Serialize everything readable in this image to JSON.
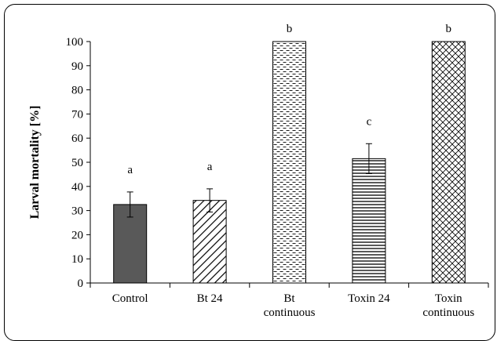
{
  "chart_data": {
    "type": "bar",
    "categories": [
      [
        "Control"
      ],
      [
        "Bt 24"
      ],
      [
        "Bt",
        "continuous"
      ],
      [
        "Toxin 24"
      ],
      [
        "Toxin",
        "continuous"
      ]
    ],
    "values": [
      32.5,
      34.2,
      100,
      51.5,
      100
    ],
    "errors": [
      5.2,
      4.8,
      0,
      6.2,
      0
    ],
    "letters": [
      "a",
      "a",
      "b",
      "c",
      "b"
    ],
    "fills": [
      "solid",
      "diagonal",
      "dashes",
      "horizontal-lines",
      "crosshatch"
    ],
    "ylabel": "Larval mortality [%]",
    "xlabel": "",
    "ylim": [
      0,
      100
    ],
    "ytick_step": 10,
    "grid": false,
    "legend": "none",
    "colors": {
      "solid_bar": "#595959",
      "pattern": "#000000",
      "background": "#ffffff"
    }
  }
}
